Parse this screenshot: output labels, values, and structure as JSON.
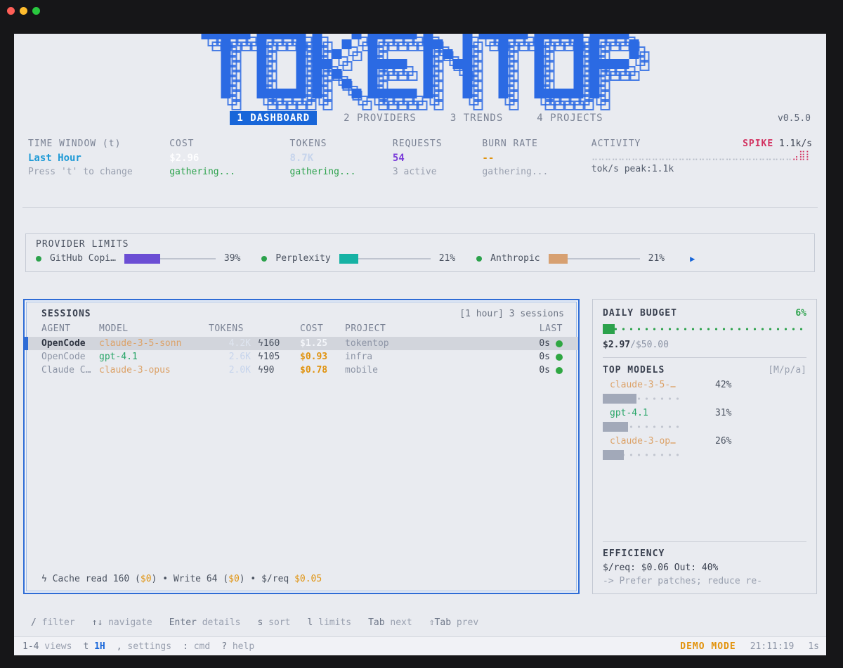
{
  "palette": {
    "logo_blue": "#2b6ae3",
    "tab_blue": "#1866d9",
    "green": "#2ca24c",
    "orange": "#e0930f",
    "sand": "#dca268",
    "purple_bar": "#6b4ed4",
    "teal_bar": "#16b2a4",
    "tan_bar": "#d7a071",
    "red": "#d2305f",
    "cyan": "#1e9ad6",
    "model_gray_bar": "#a2a9b9"
  },
  "window": {
    "traffic_lights": [
      "#ff5f57",
      "#febc2e",
      "#29c83f"
    ]
  },
  "header": {
    "logo_text": "TOKENTOP",
    "version": "v0.5.0",
    "tabs": [
      {
        "label": "1 DASHBOARD",
        "active": true
      },
      {
        "label": "2 PROVIDERS",
        "active": false
      },
      {
        "label": "3 TRENDS",
        "active": false
      },
      {
        "label": "4 PROJECTS",
        "active": false
      }
    ]
  },
  "stats": {
    "time_window": {
      "label": "TIME WINDOW (t)",
      "value": "Last Hour",
      "sub": "Press 't' to change"
    },
    "cost": {
      "label": "COST",
      "value": "$2.96",
      "sub": "gathering..."
    },
    "tokens": {
      "label": "TOKENS",
      "value": "8.7K",
      "sub": "gathering..."
    },
    "requests": {
      "label": "REQUESTS",
      "value": "54",
      "sub": "3 active"
    },
    "burn_rate": {
      "label": "BURN RATE",
      "value": "--",
      "sub": "gathering..."
    },
    "activity": {
      "label": "ACTIVITY",
      "spike_label": "SPIKE",
      "spike_value": "1.1k/s",
      "spark_base": "⣀⣀⣀⣀⣀⣀⣀⣀⣀⣀⣀⣀⣀⣀⣀⣀⣀⣀⣀⣀⣀⣀⣀⣀⣀⣀⣀⣀⣀⣀",
      "spark_spike": "⣠⣿⡇",
      "sub": "tok/s peak:1.1k"
    }
  },
  "provider_limits": {
    "title": "PROVIDER LIMITS",
    "more_icon": "▶",
    "items": [
      {
        "name": "GitHub Copi…",
        "pct": "39%",
        "color": "#6b4ed4"
      },
      {
        "name": "Perplexity",
        "pct": "21%",
        "color": "#16b2a4"
      },
      {
        "name": "Anthropic",
        "pct": "21%",
        "color": "#d7a071"
      }
    ]
  },
  "sessions": {
    "title": "SESSIONS",
    "meta": "[1 hour] 3 sessions",
    "columns": {
      "agent": "AGENT",
      "model": "MODEL",
      "tokens": "TOKENS",
      "cost": "COST",
      "project": "PROJECT",
      "last": "LAST"
    },
    "rows": [
      {
        "agent": "OpenCode",
        "model": "claude-3-5-sonn",
        "model_color": "#dca268",
        "tokens": "4.2K",
        "tokens_color": "#dfe5f0",
        "requests": "ϟ160",
        "cost": "$1.25",
        "cost_color": "#f4f6fa",
        "project": "tokentop",
        "last": "0s",
        "selected": true
      },
      {
        "agent": "OpenCode",
        "model": "gpt-4.1",
        "model_color": "#27a567",
        "tokens": "2.6K",
        "tokens_color": "#c6d4ec",
        "requests": "ϟ105",
        "cost": "$0.93",
        "cost_color": "#e0930f",
        "project": "infra",
        "last": "0s",
        "selected": false
      },
      {
        "agent": "Claude C…",
        "model": "claude-3-opus",
        "model_color": "#dca268",
        "tokens": "2.0K",
        "tokens_color": "#c6d4ec",
        "requests": "ϟ90",
        "cost": "$0.78",
        "cost_color": "#e0930f",
        "project": "mobile",
        "last": "0s",
        "selected": false
      }
    ],
    "cache_footer": {
      "p1": "ϟ Cache read 160 (",
      "o1": "$0",
      "p2": ") • Write 64 (",
      "o2": "$0",
      "p3": ") • $/req ",
      "o3": "$0.05"
    }
  },
  "budget": {
    "title": "DAILY BUDGET",
    "pct": "6%",
    "spent": "$2.97",
    "total": "/$50.00"
  },
  "top_models": {
    "title": "TOP MODELS",
    "meta": "[M/p/a]",
    "items": [
      {
        "name": "claude-3-5-…",
        "color": "#dca268",
        "pct": "42%"
      },
      {
        "name": "gpt-4.1",
        "color": "#27a567",
        "pct": "31%"
      },
      {
        "name": "claude-3-op…",
        "color": "#dca268",
        "pct": "26%"
      }
    ]
  },
  "efficiency": {
    "title": "EFFICIENCY",
    "line": "$/req: $0.06 Out: 40%",
    "hint": "-> Prefer patches; reduce re-"
  },
  "helpbar": [
    {
      "key": "/",
      "label": "filter"
    },
    {
      "key": "↑↓",
      "label": "navigate"
    },
    {
      "key": "Enter",
      "label": "details"
    },
    {
      "key": "s",
      "label": "sort"
    },
    {
      "key": "l",
      "label": "limits"
    },
    {
      "key": "Tab",
      "label": "next"
    },
    {
      "key": "⇧Tab",
      "label": "prev"
    }
  ],
  "statusbar": {
    "left": [
      {
        "key": "1-4",
        "label": "views",
        "accent": false
      },
      {
        "key": "t",
        "label": "1H",
        "accent": true
      },
      {
        "key": ",",
        "label": "settings",
        "accent": false
      },
      {
        "key": ":",
        "label": "cmd",
        "accent": false
      },
      {
        "key": "?",
        "label": "help",
        "accent": false
      }
    ],
    "mode": "DEMO MODE",
    "time": "21:11:19",
    "tick": "1s"
  }
}
